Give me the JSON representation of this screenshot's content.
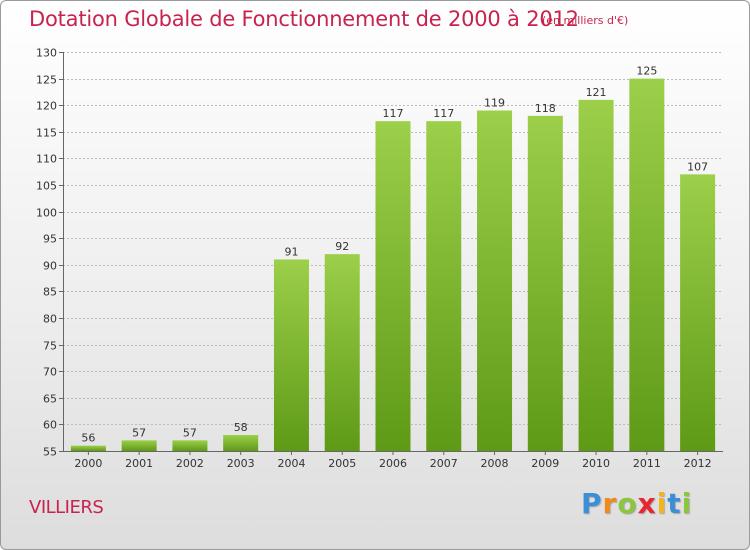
{
  "chart_data": {
    "type": "bar",
    "title": "Dotation Globale de Fonctionnement de 2000 à 2012",
    "subtitle": "(en milliers d'€)",
    "categories": [
      "2000",
      "2001",
      "2002",
      "2003",
      "2004",
      "2005",
      "2006",
      "2007",
      "2008",
      "2009",
      "2010",
      "2011",
      "2012"
    ],
    "values": [
      56,
      57,
      57,
      58,
      91,
      92,
      117,
      117,
      119,
      118,
      121,
      125,
      107
    ],
    "xlabel": "",
    "ylabel": "",
    "ylim": [
      55,
      130
    ],
    "yticks": [
      55,
      60,
      65,
      70,
      75,
      80,
      85,
      90,
      95,
      100,
      105,
      110,
      115,
      120,
      125,
      130
    ],
    "grid": true,
    "colors": {
      "bar_light": "#9ccf4a",
      "bar_dark": "#5e9a16",
      "grid": "#bbbbbb",
      "title": "#c8234e"
    }
  },
  "place_name": "VILLIERS",
  "logo": {
    "text": "Proxiti",
    "letters": [
      "P",
      "r",
      "o",
      "x",
      "i",
      "t",
      "i"
    ],
    "colors": [
      "#3b8fd6",
      "#f08a1c",
      "#8cc63f",
      "#e8262f",
      "#f2b51f",
      "#3b8fd6",
      "#8cc63f"
    ]
  }
}
